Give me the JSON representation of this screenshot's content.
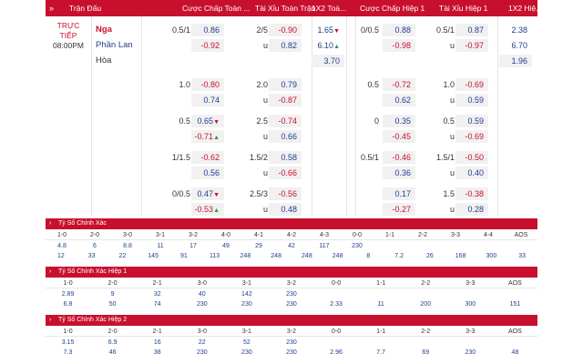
{
  "header": {
    "arrow": "»",
    "match": "Trận Đấu",
    "hc_ft": "Cược Chấp Toàn ...",
    "ou_ft": "Tài Xỉu Toàn Trận",
    "x12_ft": "1X2 Toà...",
    "hc_h1": "Cược Chấp Hiệp 1",
    "ou_h1": "Tài Xỉu Hiệp 1",
    "x12_h1": "1X2 Hiệ..."
  },
  "match": {
    "status1": "TRỰC",
    "status2": "TIẾP",
    "time": "08:00PM",
    "home": "Nga",
    "away": "Phần Lan",
    "draw": "Hòa"
  },
  "odds_rows": [
    {
      "hc": "0.5/1",
      "hc_h": "0.86",
      "hc_a": "-0.92",
      "ou": "2/5",
      "ou_h": "-0.90",
      "ou_u": "u",
      "ou_a": "0.82",
      "x1": "1.65",
      "x2": "6.10",
      "xd": "3.70",
      "hc1": "0/0.5",
      "hc1_h": "0.88",
      "hc1_a": "-0.98",
      "ou1": "0.5/1",
      "ou1_h": "0.87",
      "ou1_u": "u",
      "ou1_a": "-0.97",
      "y1": "2.38",
      "y2": "6.70",
      "yd": "1.96"
    },
    {
      "hc": "1.0",
      "hc_h": "-0.80",
      "hc_a": "0.74",
      "ou": "2.0",
      "ou_h": "0.79",
      "ou_u": "u",
      "ou_a": "-0.87",
      "hc1": "0.5",
      "hc1_h": "-0.72",
      "hc1_a": "0.62",
      "ou1": "1.0",
      "ou1_h": "-0.69",
      "ou1_u": "u",
      "ou1_a": "0.59"
    },
    {
      "hc": "0.5",
      "hc_h": "0.65",
      "hc_a": "-0.71",
      "ou": "2.5",
      "ou_h": "-0.74",
      "ou_u": "u",
      "ou_a": "0.66",
      "hc1": "0",
      "hc1_h": "0.35",
      "hc1_a": "-0.45",
      "ou1": "0.5",
      "ou1_h": "0.59",
      "ou1_u": "u",
      "ou1_a": "-0.69"
    },
    {
      "hc": "1/1.5",
      "hc_h": "-0.62",
      "hc_a": "0.56",
      "ou": "1.5/2",
      "ou_h": "0.58",
      "ou_u": "u",
      "ou_a": "-0.66",
      "hc1": "0.5/1",
      "hc1_h": "-0.46",
      "hc1_a": "0.36",
      "ou1": "1.5/1",
      "ou1_h": "-0.50",
      "ou1_u": "u",
      "ou1_a": "0.40"
    },
    {
      "hc": "0/0.5",
      "hc_h": "0.47",
      "hc_a": "-0.53",
      "ou": "2.5/3",
      "ou_h": "-0.56",
      "ou_u": "u",
      "ou_a": "0.48",
      "hc1": "",
      "hc1_h": "0.17",
      "hc1_a": "-0.27",
      "ou1": "1.5",
      "ou1_h": "-0.38",
      "ou1_u": "u",
      "ou1_a": "0.28"
    }
  ],
  "cs_ft": {
    "title": "Tỷ Số Chính Xác",
    "labels": [
      "1-0",
      "2-0",
      "3-0",
      "3-1",
      "3-2",
      "4-0",
      "4-1",
      "4-2",
      "4-3",
      "0-0",
      "1-1",
      "2-2",
      "3-3",
      "4-4",
      "AOS"
    ],
    "top": [
      "4.8",
      "6",
      "8.8",
      "11",
      "17",
      "49",
      "29",
      "42",
      "117",
      "230"
    ],
    "bot": [
      "12",
      "33",
      "22",
      "145",
      "91",
      "113",
      "248",
      "248",
      "248",
      "248",
      "8",
      "7.2",
      "26",
      "168",
      "300",
      "33"
    ]
  },
  "cs_h1": {
    "title": "Tỷ Số Chính Xác Hiệp 1",
    "labels": [
      "1-0",
      "2-0",
      "2-1",
      "3-0",
      "3-1",
      "3-2",
      "0-0",
      "1-1",
      "2-2",
      "3-3",
      "AOS"
    ],
    "top": [
      "2.89",
      "9",
      "32",
      "40",
      "142",
      "230"
    ],
    "bot": [
      "6.8",
      "50",
      "74",
      "230",
      "230",
      "230",
      "2.33",
      "11",
      "200",
      "300",
      "151"
    ]
  },
  "cs_h2": {
    "title": "Tỷ Số Chính Xác Hiệp 2",
    "labels": [
      "1-0",
      "2-0",
      "2-1",
      "3-0",
      "3-1",
      "3-2",
      "0-0",
      "1-1",
      "2-2",
      "3-3",
      "AOS"
    ],
    "top": [
      "3.15",
      "6.9",
      "16",
      "22",
      "52",
      "230"
    ],
    "bot": [
      "7.3",
      "46",
      "38",
      "230",
      "230",
      "230",
      "2.96",
      "7.7",
      "69",
      "230",
      "48"
    ]
  }
}
